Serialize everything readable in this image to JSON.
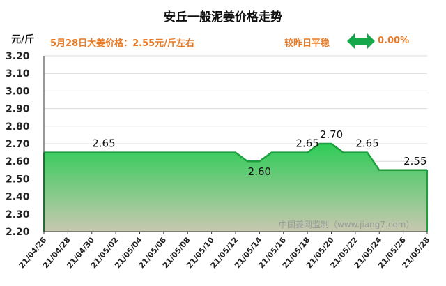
{
  "header": {
    "title": "安丘一般泥姜价格走势",
    "unit": "元/斤",
    "price_info": "5月28日大姜价格：2.55元/斤左右",
    "compare_label": "较昨日平稳",
    "compare_value": "0.00%"
  },
  "watermark": "中国姜网监制（www.jiang7.com）",
  "colors": {
    "accent": "#e87a25",
    "line": "#1e9e3e",
    "fill_top": "#2ecc57",
    "fill_bottom": "#c8c8b0",
    "arrow": "#15a84a"
  },
  "icons": {
    "compare": "double-arrow-icon"
  },
  "chart_data": {
    "type": "area",
    "ylim": [
      2.2,
      3.2
    ],
    "yticks": [
      "2.20",
      "2.30",
      "2.40",
      "2.50",
      "2.60",
      "2.70",
      "2.80",
      "2.90",
      "3.00",
      "3.10",
      "3.20"
    ],
    "xticks": [
      "21/04/26",
      "21/04/28",
      "21/04/30",
      "21/05/02",
      "21/05/04",
      "21/05/06",
      "21/05/08",
      "21/05/10",
      "21/05/12",
      "21/05/14",
      "21/05/16",
      "21/05/18",
      "21/05/20",
      "21/05/22",
      "21/05/24",
      "21/05/26",
      "21/05/28"
    ],
    "x": [
      "21/04/26",
      "21/04/27",
      "21/04/28",
      "21/04/29",
      "21/04/30",
      "21/05/01",
      "21/05/02",
      "21/05/03",
      "21/05/04",
      "21/05/05",
      "21/05/06",
      "21/05/07",
      "21/05/08",
      "21/05/09",
      "21/05/10",
      "21/05/11",
      "21/05/12",
      "21/05/13",
      "21/05/14",
      "21/05/15",
      "21/05/16",
      "21/05/17",
      "21/05/18",
      "21/05/19",
      "21/05/20",
      "21/05/21",
      "21/05/22",
      "21/05/23",
      "21/05/24",
      "21/05/25",
      "21/05/26",
      "21/05/27",
      "21/05/28"
    ],
    "values": [
      2.65,
      2.65,
      2.65,
      2.65,
      2.65,
      2.65,
      2.65,
      2.65,
      2.65,
      2.65,
      2.65,
      2.65,
      2.65,
      2.65,
      2.65,
      2.65,
      2.65,
      2.6,
      2.6,
      2.65,
      2.65,
      2.65,
      2.65,
      2.7,
      2.7,
      2.65,
      2.65,
      2.65,
      2.55,
      2.55,
      2.55,
      2.55,
      2.55
    ],
    "data_labels": [
      {
        "index": 5,
        "text": "2.65"
      },
      {
        "index": 18,
        "text": "2.60"
      },
      {
        "index": 22,
        "text": "2.65"
      },
      {
        "index": 24,
        "text": "2.70"
      },
      {
        "index": 27,
        "text": "2.65"
      },
      {
        "index": 31,
        "text": "2.55"
      }
    ],
    "grid": true,
    "legend": "none"
  }
}
